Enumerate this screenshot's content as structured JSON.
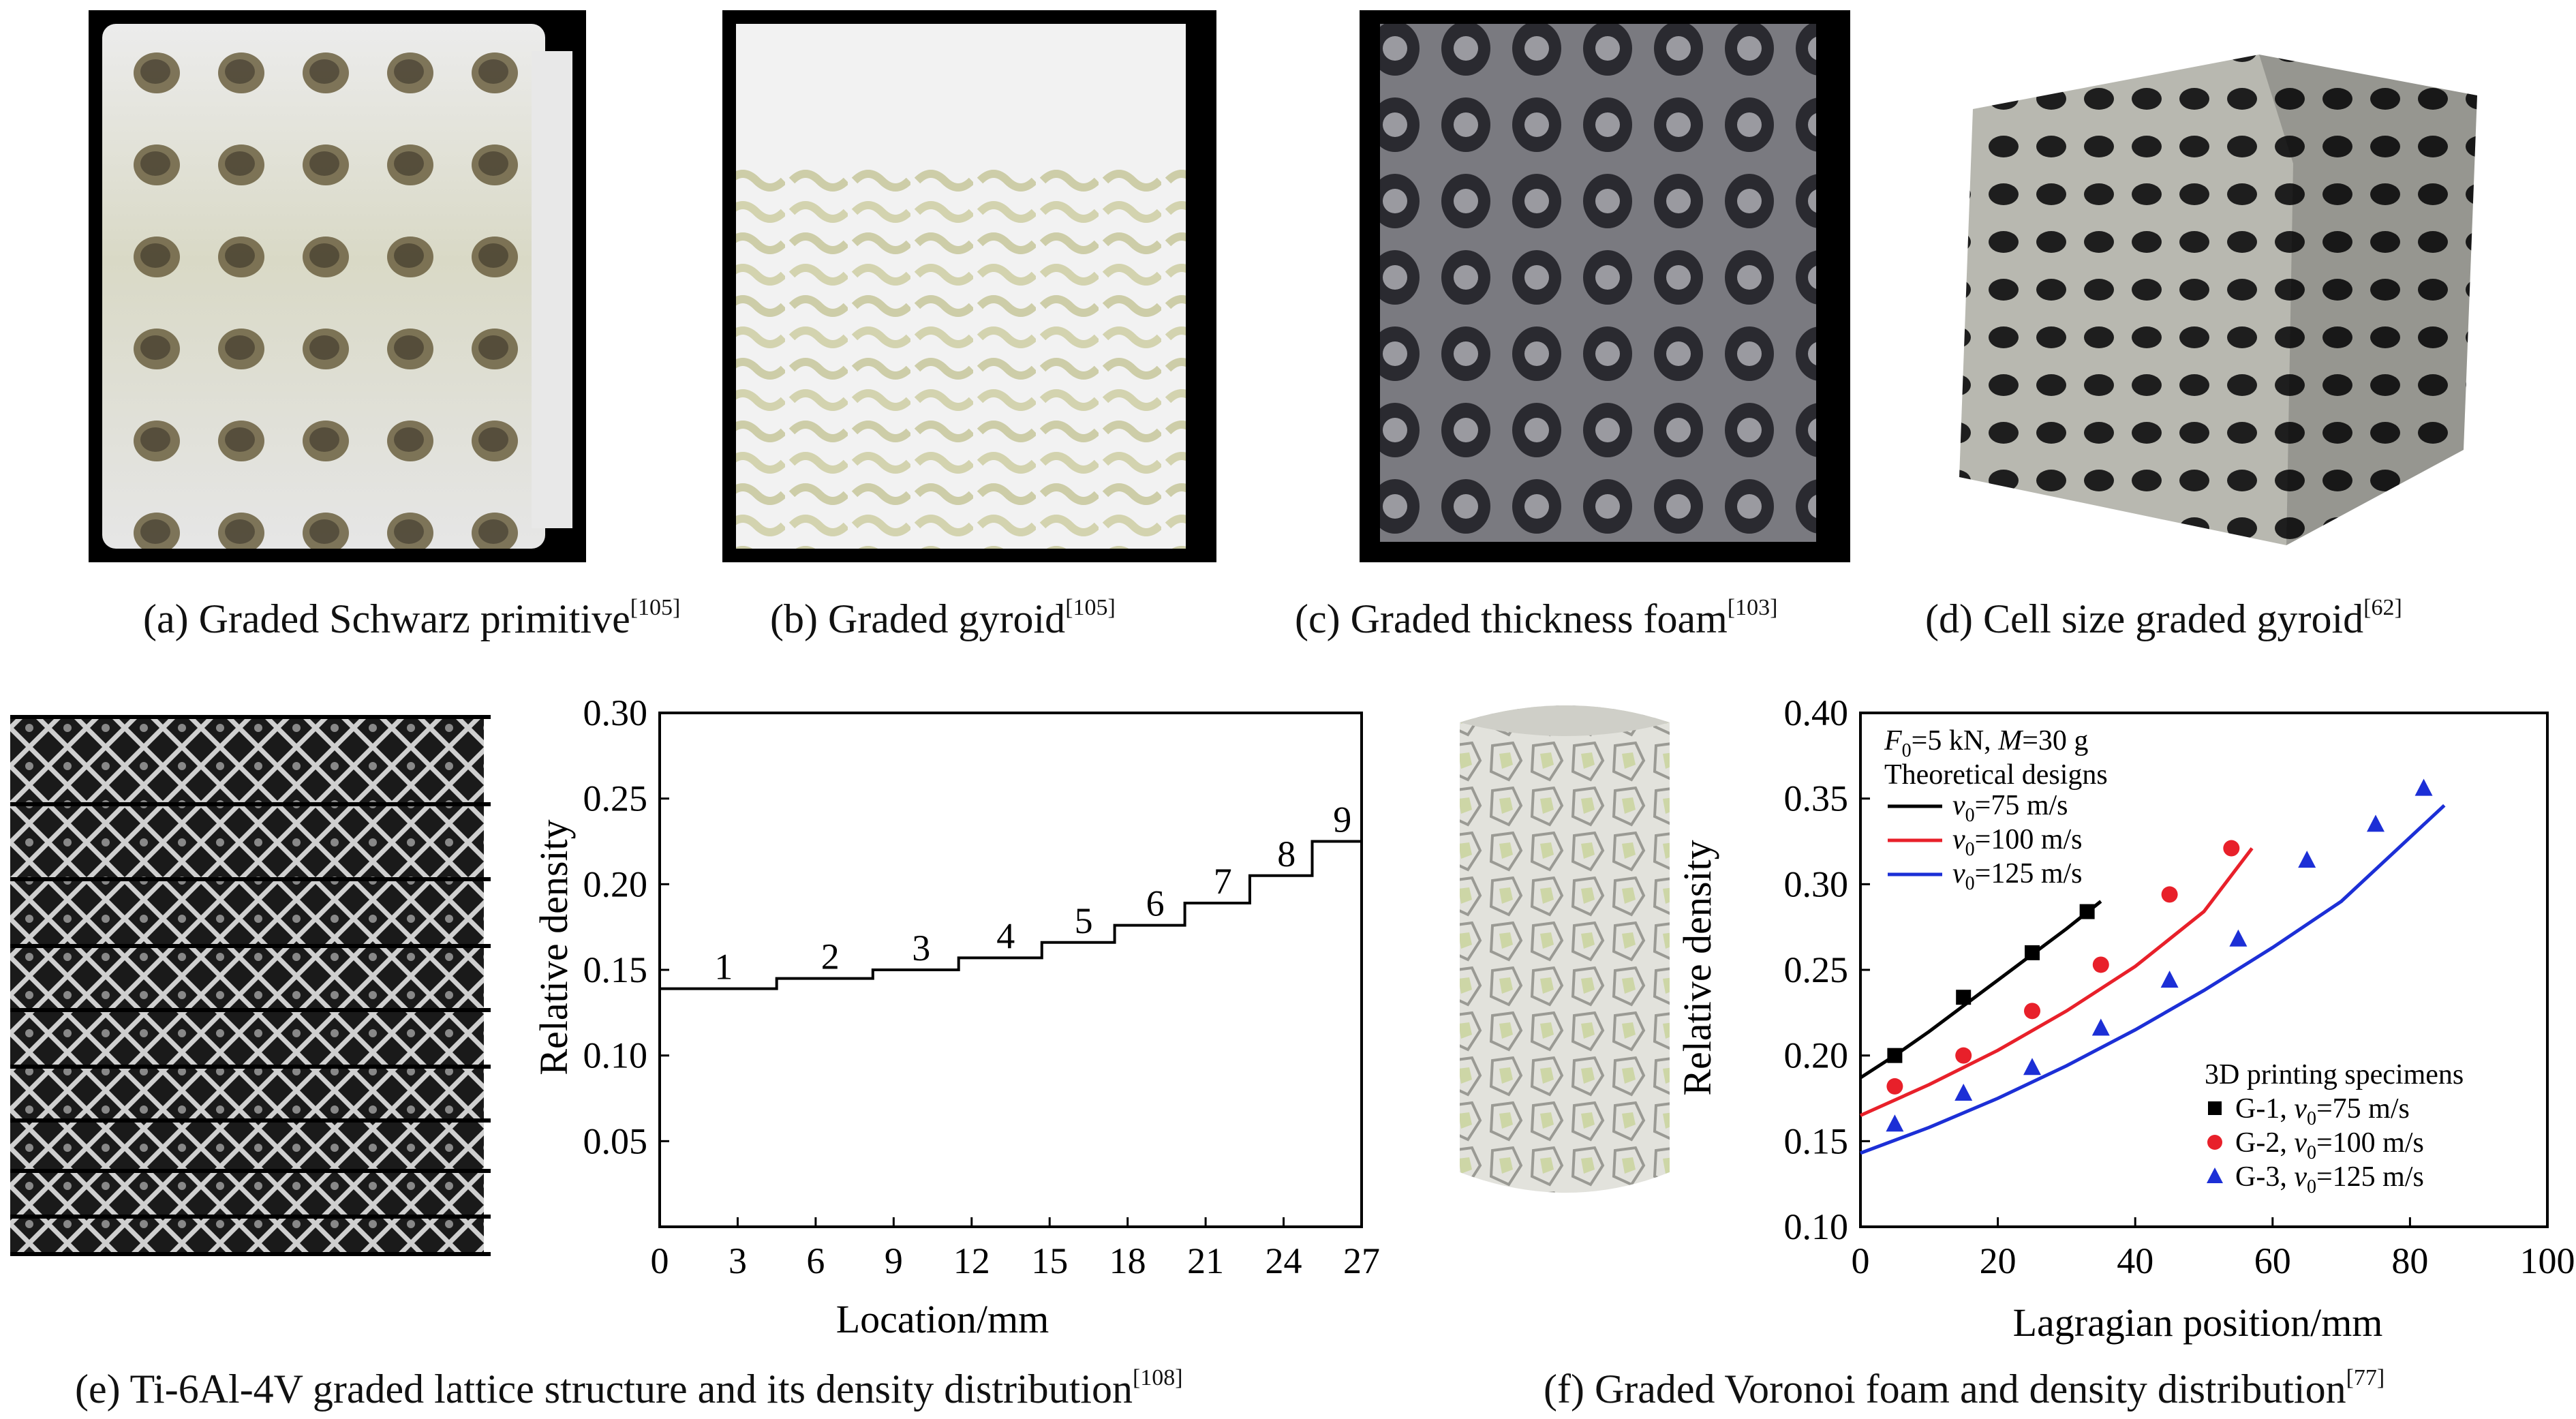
{
  "panels": {
    "a": {
      "caption": "(a) Graded Schwarz primitive",
      "ref": "[105]"
    },
    "b": {
      "caption": "(b) Graded gyroid",
      "ref": "[105]"
    },
    "c": {
      "caption": "(c) Graded thickness foam",
      "ref": "[103]"
    },
    "d": {
      "caption": "(d) Cell size graded gyroid",
      "ref": "[62]"
    },
    "e": {
      "caption": "(e) Ti-6Al-4V graded lattice structure and its density distribution",
      "ref": "[108]"
    },
    "f": {
      "caption": "(f) Graded Voronoi foam and density distribution",
      "ref": "[77]"
    }
  },
  "colors": {
    "black_series": "#000000",
    "red_series": "#e8202a",
    "blue_series": "#1c2fd6"
  },
  "chart_data": [
    {
      "type": "line",
      "xlabel": "Location/mm",
      "ylabel": "Relative density",
      "xlim": [
        0,
        27
      ],
      "ylim": [
        0,
        0.3
      ],
      "xticks": [
        "0",
        "3",
        "6",
        "9",
        "12",
        "15",
        "18",
        "21",
        "24",
        "27"
      ],
      "yticks": [
        "0.05",
        "0.10",
        "0.15",
        "0.20",
        "0.25",
        "0.30"
      ],
      "step_segments": [
        {
          "label": "1",
          "x0": 0,
          "x1": 4.5,
          "y": 0.139
        },
        {
          "label": "2",
          "x0": 4.5,
          "x1": 8.2,
          "y": 0.145
        },
        {
          "label": "3",
          "x0": 8.2,
          "x1": 11.5,
          "y": 0.15
        },
        {
          "label": "4",
          "x0": 11.5,
          "x1": 14.7,
          "y": 0.157
        },
        {
          "label": "5",
          "x0": 14.7,
          "x1": 17.5,
          "y": 0.166
        },
        {
          "label": "6",
          "x0": 17.5,
          "x1": 20.2,
          "y": 0.176
        },
        {
          "label": "7",
          "x0": 20.2,
          "x1": 22.7,
          "y": 0.189
        },
        {
          "label": "8",
          "x0": 22.7,
          "x1": 25.1,
          "y": 0.205
        },
        {
          "label": "9",
          "x0": 25.1,
          "x1": 27,
          "y": 0.225
        }
      ]
    },
    {
      "type": "scatter",
      "xlabel": "Lagragian position/mm",
      "ylabel": "Relative density",
      "xlim": [
        0,
        100
      ],
      "ylim": [
        0.1,
        0.4
      ],
      "xticks": [
        "0",
        "20",
        "40",
        "60",
        "80",
        "100"
      ],
      "yticks": [
        "0.10",
        "0.15",
        "0.20",
        "0.25",
        "0.30",
        "0.35",
        "0.40"
      ],
      "legend_conditions": {
        "f_sym": "F",
        "f_sub": "0",
        "f_val": "=5 kN, ",
        "m_sym": "M",
        "m_val": "=30 g"
      },
      "legend_theory_title": "Theoretical designs",
      "legend_specimen_title": "3D printing specimens",
      "curves": [
        {
          "name_prefix": "v",
          "name_sub": "0",
          "name_suffix": "=75 m/s",
          "color": "#000000",
          "x": [
            0,
            5,
            10,
            15,
            20,
            25,
            30,
            35
          ],
          "y": [
            0.187,
            0.2,
            0.214,
            0.229,
            0.244,
            0.259,
            0.274,
            0.29
          ]
        },
        {
          "name_prefix": "v",
          "name_sub": "0",
          "name_suffix": "=100 m/s",
          "color": "#e8202a",
          "x": [
            0,
            10,
            20,
            30,
            40,
            50,
            57
          ],
          "y": [
            0.165,
            0.183,
            0.203,
            0.226,
            0.252,
            0.284,
            0.321
          ]
        },
        {
          "name_prefix": "v",
          "name_sub": "0",
          "name_suffix": "=125 m/s",
          "color": "#1c2fd6",
          "x": [
            0,
            10,
            20,
            30,
            40,
            50,
            60,
            70,
            85
          ],
          "y": [
            0.143,
            0.158,
            0.175,
            0.194,
            0.215,
            0.238,
            0.263,
            0.29,
            0.346
          ]
        }
      ],
      "series": [
        {
          "name_prefix": "G-1, ",
          "name_sym": "v",
          "name_sub": "0",
          "name_suffix": "=75 m/s",
          "marker": "square",
          "color": "#000000",
          "x": [
            5,
            15,
            25,
            33
          ],
          "y": [
            0.2,
            0.234,
            0.26,
            0.284
          ]
        },
        {
          "name_prefix": "G-2, ",
          "name_sym": "v",
          "name_sub": "0",
          "name_suffix": "=100 m/s",
          "marker": "circle",
          "color": "#e8202a",
          "x": [
            5,
            15,
            25,
            35,
            45,
            54
          ],
          "y": [
            0.182,
            0.2,
            0.226,
            0.253,
            0.294,
            0.321
          ]
        },
        {
          "name_prefix": "G-3, ",
          "name_sym": "v",
          "name_sub": "0",
          "name_suffix": "=125 m/s",
          "marker": "triangle",
          "color": "#1c2fd6",
          "x": [
            5,
            15,
            25,
            35,
            45,
            55,
            65,
            75,
            82
          ],
          "y": [
            0.16,
            0.178,
            0.193,
            0.216,
            0.244,
            0.268,
            0.314,
            0.335,
            0.356
          ]
        }
      ]
    }
  ]
}
